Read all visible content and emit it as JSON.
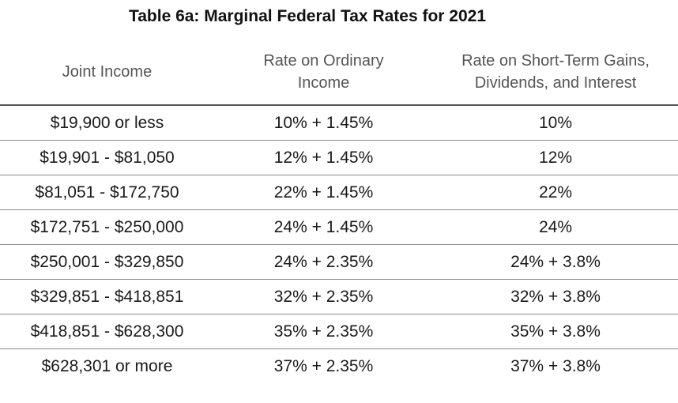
{
  "title": "Table 6a: Marginal Federal Tax Rates for 2021",
  "columns": {
    "income": "Joint Income",
    "ordinary": [
      "Rate on Ordinary",
      "Income"
    ],
    "short_term": [
      "Rate on Short-Term Gains,",
      "Dividends, and Interest"
    ]
  },
  "rows": [
    {
      "income": "$19,900 or less",
      "ordinary": "10% + 1.45%",
      "short_term": "10%"
    },
    {
      "income": "$19,901 - $81,050",
      "ordinary": "12% + 1.45%",
      "short_term": "12%"
    },
    {
      "income": "$81,051 - $172,750",
      "ordinary": "22% + 1.45%",
      "short_term": "22%"
    },
    {
      "income": "$172,751 - $250,000",
      "ordinary": "24% + 1.45%",
      "short_term": "24%"
    },
    {
      "income": "$250,001 - $329,850",
      "ordinary": "24% + 2.35%",
      "short_term": "24% + 3.8%"
    },
    {
      "income": "$329,851 - $418,851",
      "ordinary": "32% + 2.35%",
      "short_term": "32% + 3.8%"
    },
    {
      "income": "$418,851 - $628,300",
      "ordinary": "35% + 2.35%",
      "short_term": "35% + 3.8%"
    },
    {
      "income": "$628,301 or more",
      "ordinary": "37% + 2.35%",
      "short_term": "37% + 3.8%"
    }
  ]
}
